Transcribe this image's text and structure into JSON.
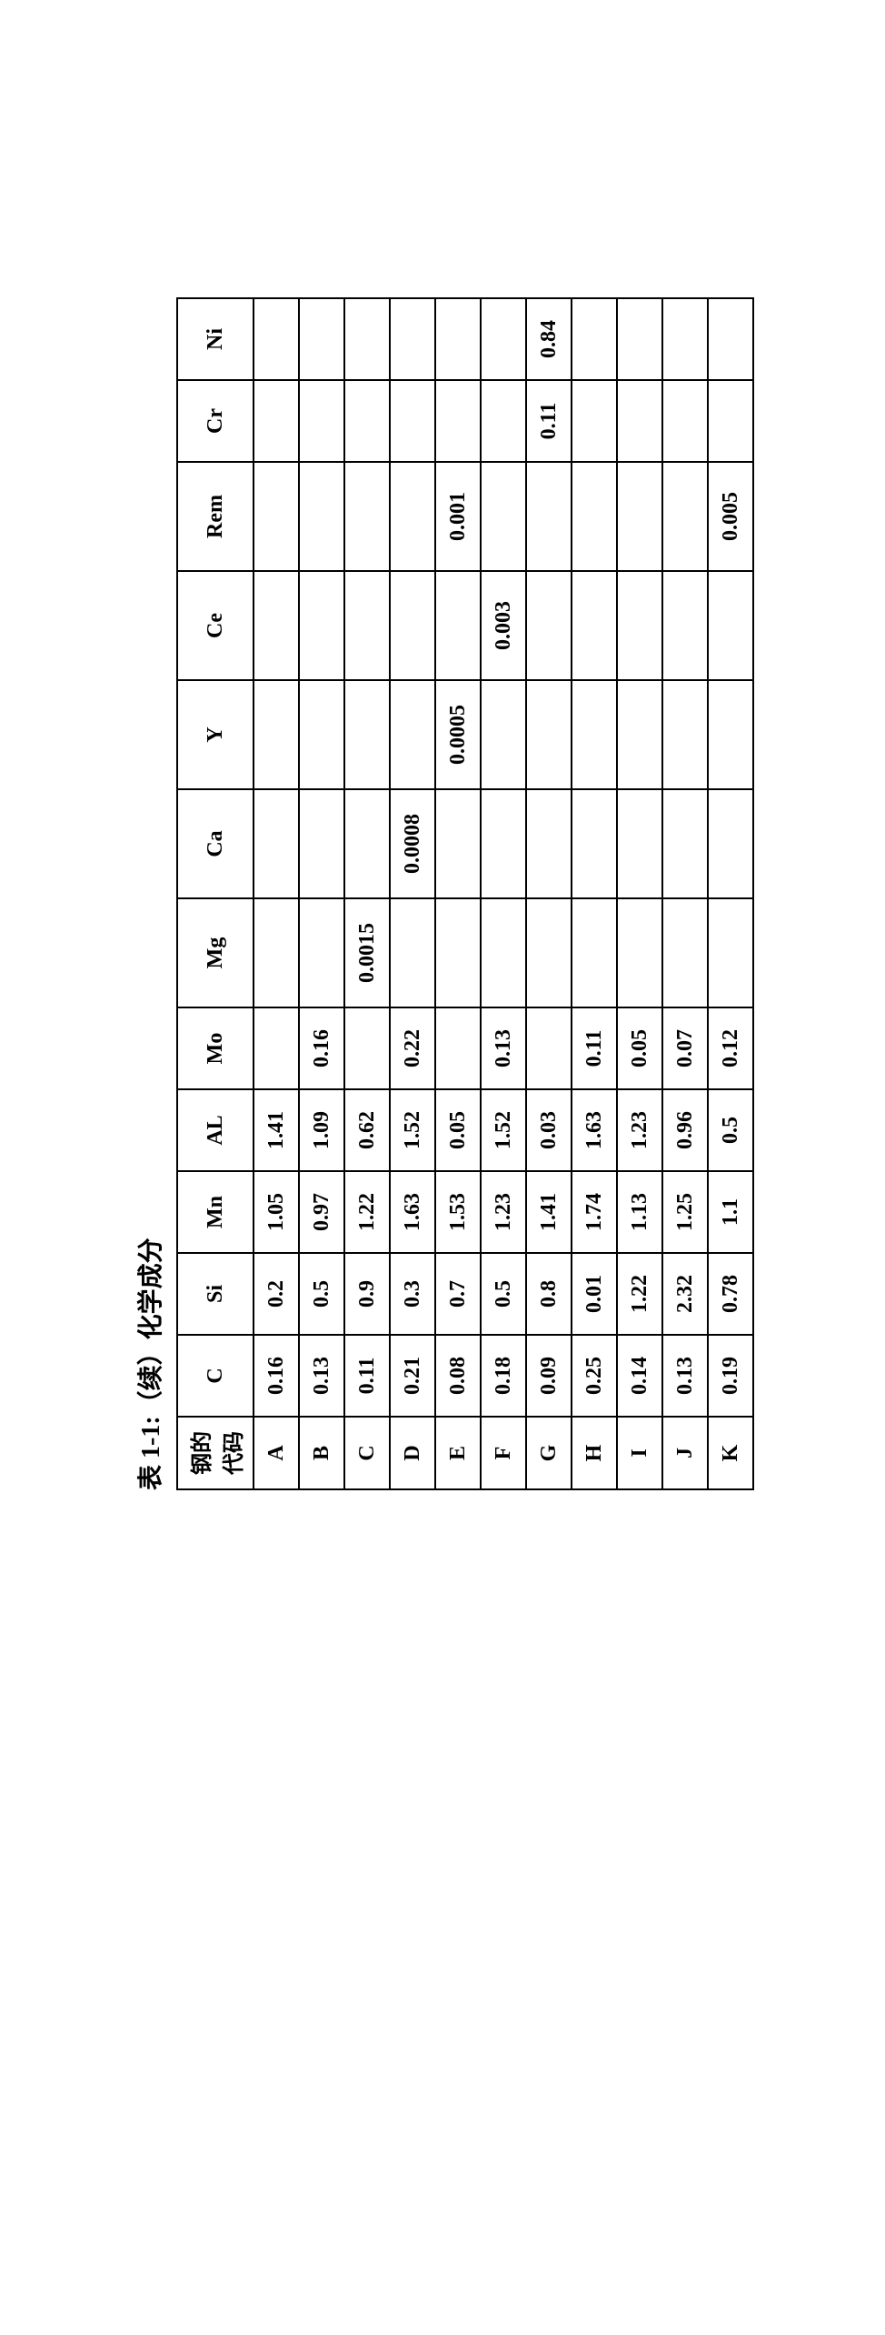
{
  "caption": "表 1-1:（续）化学成分",
  "header": {
    "code_line1": "钢的",
    "code_line2": "代码",
    "cols": [
      "C",
      "Si",
      "Mn",
      "AL",
      "Mo",
      "Mg",
      "Ca",
      "Y",
      "Ce",
      "Rem",
      "Cr",
      "Ni"
    ]
  },
  "rows": [
    {
      "code": "A",
      "C": "0.16",
      "Si": "0.2",
      "Mn": "1.05",
      "AL": "1.41",
      "Mo": "",
      "Mg": "",
      "Ca": "",
      "Y": "",
      "Ce": "",
      "Rem": "",
      "Cr": "",
      "Ni": ""
    },
    {
      "code": "B",
      "C": "0.13",
      "Si": "0.5",
      "Mn": "0.97",
      "AL": "1.09",
      "Mo": "0.16",
      "Mg": "",
      "Ca": "",
      "Y": "",
      "Ce": "",
      "Rem": "",
      "Cr": "",
      "Ni": ""
    },
    {
      "code": "C",
      "C": "0.11",
      "Si": "0.9",
      "Mn": "1.22",
      "AL": "0.62",
      "Mo": "",
      "Mg": "0.0015",
      "Ca": "",
      "Y": "",
      "Ce": "",
      "Rem": "",
      "Cr": "",
      "Ni": ""
    },
    {
      "code": "D",
      "C": "0.21",
      "Si": "0.3",
      "Mn": "1.63",
      "AL": "1.52",
      "Mo": "0.22",
      "Mg": "",
      "Ca": "0.0008",
      "Y": "",
      "Ce": "",
      "Rem": "",
      "Cr": "",
      "Ni": ""
    },
    {
      "code": "E",
      "C": "0.08",
      "Si": "0.7",
      "Mn": "1.53",
      "AL": "0.05",
      "Mo": "",
      "Mg": "",
      "Ca": "",
      "Y": "0.0005",
      "Ce": "",
      "Rem": "0.001",
      "Cr": "",
      "Ni": ""
    },
    {
      "code": "F",
      "C": "0.18",
      "Si": "0.5",
      "Mn": "1.23",
      "AL": "1.52",
      "Mo": "0.13",
      "Mg": "",
      "Ca": "",
      "Y": "",
      "Ce": "0.003",
      "Rem": "",
      "Cr": "",
      "Ni": ""
    },
    {
      "code": "G",
      "C": "0.09",
      "Si": "0.8",
      "Mn": "1.41",
      "AL": "0.03",
      "Mo": "",
      "Mg": "",
      "Ca": "",
      "Y": "",
      "Ce": "",
      "Rem": "",
      "Cr": "0.11",
      "Ni": "0.84"
    },
    {
      "code": "H",
      "C": "0.25",
      "Si": "0.01",
      "Mn": "1.74",
      "AL": "1.63",
      "Mo": "0.11",
      "Mg": "",
      "Ca": "",
      "Y": "",
      "Ce": "",
      "Rem": "",
      "Cr": "",
      "Ni": ""
    },
    {
      "code": "I",
      "C": "0.14",
      "Si": "1.22",
      "Mn": "1.13",
      "AL": "1.23",
      "Mo": "0.05",
      "Mg": "",
      "Ca": "",
      "Y": "",
      "Ce": "",
      "Rem": "",
      "Cr": "",
      "Ni": ""
    },
    {
      "code": "J",
      "C": "0.13",
      "Si": "2.32",
      "Mn": "1.25",
      "AL": "0.96",
      "Mo": "0.07",
      "Mg": "",
      "Ca": "",
      "Y": "",
      "Ce": "",
      "Rem": "",
      "Cr": "",
      "Ni": ""
    },
    {
      "code": "K",
      "C": "0.19",
      "Si": "0.78",
      "Mn": "1.1",
      "AL": "0.5",
      "Mo": "0.12",
      "Mg": "",
      "Ca": "",
      "Y": "",
      "Ce": "",
      "Rem": "0.005",
      "Cr": "",
      "Ni": ""
    }
  ],
  "col_classes": {
    "C": "col-narrow",
    "Si": "col-narrow",
    "Mn": "col-narrow",
    "AL": "col-narrow",
    "Mo": "col-narrow",
    "Mg": "col-wide",
    "Ca": "col-wide",
    "Y": "col-wide",
    "Ce": "col-wide",
    "Rem": "col-wide",
    "Cr": "col-narrow",
    "Ni": "col-narrow"
  }
}
